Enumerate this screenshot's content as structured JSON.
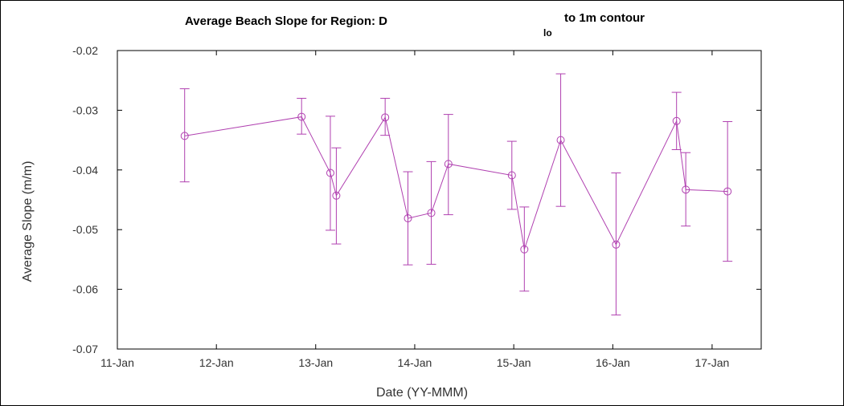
{
  "chart_data": {
    "type": "scatter",
    "title": "Average Beach Slope for Region:  D",
    "title_subscript": "lo",
    "title_suffix": "to 1m contour",
    "xlabel": "Date (YY-MMM)",
    "ylabel": "Average Slope (m/m)",
    "x_tick_labels": [
      "11-Jan",
      "12-Jan",
      "13-Jan",
      "14-Jan",
      "15-Jan",
      "16-Jan",
      "17-Jan"
    ],
    "y_tick_labels": [
      "-0.02",
      "-0.03",
      "-0.04",
      "-0.05",
      "-0.06",
      "-0.07"
    ],
    "xlim": [
      "2011-01-01",
      "2017-07-01"
    ],
    "ylim": [
      -0.07,
      -0.02
    ],
    "grid": false,
    "color": "#b040b0",
    "series": [
      {
        "x": [
          "2011-09-06",
          "2012-11-10",
          "2013-02-24",
          "2013-03-18",
          "2013-09-14",
          "2013-12-07",
          "2014-03-03",
          "2014-05-05",
          "2014-12-25",
          "2015-02-09",
          "2015-06-23",
          "2016-01-13",
          "2016-08-23",
          "2016-09-26",
          "2017-02-27"
        ],
        "y": [
          -0.0343,
          -0.0311,
          -0.0405,
          -0.0443,
          -0.0312,
          -0.0481,
          -0.0472,
          -0.039,
          -0.0409,
          -0.0533,
          -0.035,
          -0.0525,
          -0.0318,
          -0.0433,
          -0.0436
        ],
        "err_low": [
          -0.042,
          -0.034,
          -0.0501,
          -0.0524,
          -0.0342,
          -0.0559,
          -0.0558,
          -0.0475,
          -0.0466,
          -0.0603,
          -0.0461,
          -0.0643,
          -0.0366,
          -0.0494,
          -0.0553
        ],
        "err_high": [
          -0.0264,
          -0.028,
          -0.031,
          -0.0363,
          -0.028,
          -0.0403,
          -0.0386,
          -0.0307,
          -0.0352,
          -0.0462,
          -0.0239,
          -0.0405,
          -0.027,
          -0.0371,
          -0.0319
        ]
      }
    ]
  }
}
